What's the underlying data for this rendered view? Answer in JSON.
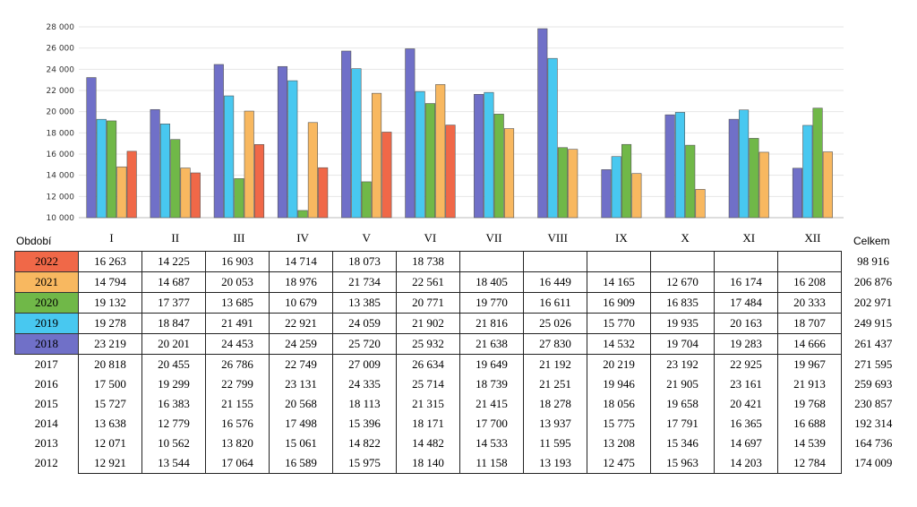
{
  "chart_data": {
    "type": "bar",
    "categories": [
      "I",
      "II",
      "III",
      "IV",
      "V",
      "VI",
      "VII",
      "VIII",
      "IX",
      "X",
      "XI",
      "XII"
    ],
    "ylim": [
      10000,
      28000
    ],
    "yticks": [
      "10 000",
      "12 000",
      "14 000",
      "16 000",
      "18 000",
      "20 000",
      "22 000",
      "24 000",
      "26 000",
      "28 000"
    ],
    "series": [
      {
        "name": "2018",
        "color": "#7070c8",
        "values": [
          23219,
          20201,
          24453,
          24259,
          25720,
          25932,
          21638,
          27830,
          14532,
          19704,
          19283,
          14666
        ]
      },
      {
        "name": "2019",
        "color": "#48c8f0",
        "values": [
          19278,
          18847,
          21491,
          22921,
          24059,
          21902,
          21816,
          25026,
          15770,
          19935,
          20163,
          18707
        ]
      },
      {
        "name": "2020",
        "color": "#70b848",
        "values": [
          19132,
          17377,
          13685,
          10679,
          13385,
          20771,
          19770,
          16611,
          16909,
          16835,
          17484,
          20333
        ]
      },
      {
        "name": "2021",
        "color": "#f8b860",
        "values": [
          14794,
          14687,
          20053,
          18976,
          21734,
          22561,
          18405,
          16449,
          14165,
          12670,
          16174,
          16208
        ]
      },
      {
        "name": "2022",
        "color": "#f06848",
        "values": [
          16263,
          14225,
          16903,
          14714,
          18073,
          18738,
          null,
          null,
          null,
          null,
          null,
          null
        ]
      }
    ]
  },
  "table": {
    "period_label": "Období",
    "total_label": "Celkem",
    "rows": [
      {
        "year": "2022",
        "color": "#f06848",
        "cells": [
          "16 263",
          "14 225",
          "16 903",
          "14 714",
          "18 073",
          "18 738",
          "",
          "",
          "",
          "",
          "",
          ""
        ],
        "total": "98 916"
      },
      {
        "year": "2021",
        "color": "#f8b860",
        "cells": [
          "14 794",
          "14 687",
          "20 053",
          "18 976",
          "21 734",
          "22 561",
          "18 405",
          "16 449",
          "14 165",
          "12 670",
          "16 174",
          "16 208"
        ],
        "total": "206 876"
      },
      {
        "year": "2020",
        "color": "#70b848",
        "cells": [
          "19 132",
          "17 377",
          "13 685",
          "10 679",
          "13 385",
          "20 771",
          "19 770",
          "16 611",
          "16 909",
          "16 835",
          "17 484",
          "20 333"
        ],
        "total": "202 971"
      },
      {
        "year": "2019",
        "color": "#48c8f0",
        "cells": [
          "19 278",
          "18 847",
          "21 491",
          "22 921",
          "24 059",
          "21 902",
          "21 816",
          "25 026",
          "15 770",
          "19 935",
          "20 163",
          "18 707"
        ],
        "total": "249 915"
      },
      {
        "year": "2018",
        "color": "#7070c8",
        "cells": [
          "23 219",
          "20 201",
          "24 453",
          "24 259",
          "25 720",
          "25 932",
          "21 638",
          "27 830",
          "14 532",
          "19 704",
          "19 283",
          "14 666"
        ],
        "total": "261 437"
      },
      {
        "year": "2017",
        "color": "",
        "cells": [
          "20 818",
          "20 455",
          "26 786",
          "22 749",
          "27 009",
          "26 634",
          "19 649",
          "21 192",
          "20 219",
          "23 192",
          "22 925",
          "19 967"
        ],
        "total": "271 595"
      },
      {
        "year": "2016",
        "color": "",
        "cells": [
          "17 500",
          "19 299",
          "22 799",
          "23 131",
          "24 335",
          "25 714",
          "18 739",
          "21 251",
          "19 946",
          "21 905",
          "23 161",
          "21 913"
        ],
        "total": "259 693"
      },
      {
        "year": "2015",
        "color": "",
        "cells": [
          "15 727",
          "16 383",
          "21 155",
          "20 568",
          "18 113",
          "21 315",
          "21 415",
          "18 278",
          "18 056",
          "19 658",
          "20 421",
          "19 768"
        ],
        "total": "230 857"
      },
      {
        "year": "2014",
        "color": "",
        "cells": [
          "13 638",
          "12 779",
          "16 576",
          "17 498",
          "15 396",
          "18 171",
          "17 700",
          "13 937",
          "15 775",
          "17 791",
          "16 365",
          "16 688"
        ],
        "total": "192 314"
      },
      {
        "year": "2013",
        "color": "",
        "cells": [
          "12 071",
          "10 562",
          "13 820",
          "15 061",
          "14 822",
          "14 482",
          "14 533",
          "11 595",
          "13 208",
          "15 346",
          "14 697",
          "14 539"
        ],
        "total": "164 736"
      },
      {
        "year": "2012",
        "color": "",
        "cells": [
          "12 921",
          "13 544",
          "17 064",
          "16 589",
          "15 975",
          "18 140",
          "11 158",
          "13 193",
          "12 475",
          "15 963",
          "14 203",
          "12 784"
        ],
        "total": "174 009"
      }
    ]
  }
}
